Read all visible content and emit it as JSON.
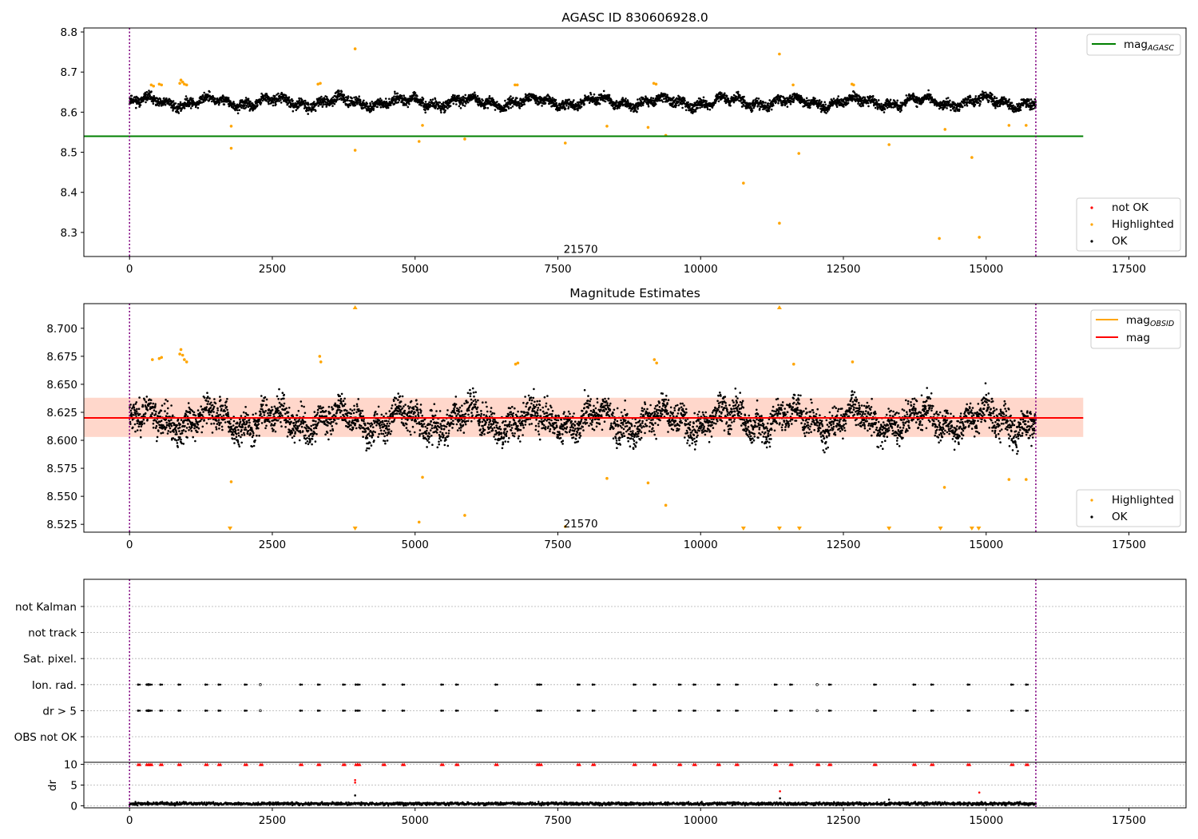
{
  "chart_data": [
    {
      "type": "scatter",
      "title": "AGASC ID 830606928.0",
      "xlim": [
        -800,
        18500
      ],
      "ylim": [
        8.24,
        8.81
      ],
      "xticks": [
        0,
        2500,
        5000,
        7500,
        10000,
        12500,
        15000,
        17500
      ],
      "yticks": [
        8.3,
        8.4,
        8.5,
        8.6,
        8.7,
        8.8
      ],
      "ytick_labels": [
        "8.3",
        "8.4",
        "8.5",
        "8.6",
        "8.7",
        "8.8"
      ],
      "grid": false,
      "vlines": [
        0,
        15870
      ],
      "hline": {
        "name": "mag_AGASC",
        "legend_main": "mag",
        "legend_sub": "AGASC",
        "y": 8.54,
        "x_range": [
          -800,
          16700
        ],
        "color": "#008000"
      },
      "obsid_label": {
        "text": "21570",
        "x": 7900,
        "y": 8.257
      },
      "series_ok": {
        "name": "OK",
        "color": "#000000",
        "x_range": [
          0,
          15870
        ],
        "level": 8.625,
        "amplitude": 0.022,
        "noise": 0.012,
        "seed": 11
      },
      "highlighted": {
        "name": "Highlighted",
        "color": "#ffa500",
        "points": [
          [
            380,
            8.668
          ],
          [
            420,
            8.665
          ],
          [
            520,
            8.67
          ],
          [
            560,
            8.668
          ],
          [
            880,
            8.672
          ],
          [
            900,
            8.68
          ],
          [
            930,
            8.675
          ],
          [
            960,
            8.67
          ],
          [
            1000,
            8.668
          ],
          [
            1780,
            8.565
          ],
          [
            1780,
            8.51
          ],
          [
            3300,
            8.67
          ],
          [
            3340,
            8.672
          ],
          [
            3950,
            8.758
          ],
          [
            3950,
            8.505
          ],
          [
            5070,
            8.527
          ],
          [
            5130,
            8.567
          ],
          [
            5870,
            8.533
          ],
          [
            6750,
            8.668
          ],
          [
            6790,
            8.668
          ],
          [
            7630,
            8.523
          ],
          [
            8360,
            8.565
          ],
          [
            9080,
            8.562
          ],
          [
            9180,
            8.672
          ],
          [
            9220,
            8.67
          ],
          [
            9390,
            8.542
          ],
          [
            10750,
            8.423
          ],
          [
            11380,
            8.745
          ],
          [
            11380,
            8.323
          ],
          [
            11620,
            8.668
          ],
          [
            11720,
            8.497
          ],
          [
            12650,
            8.67
          ],
          [
            12680,
            8.668
          ],
          [
            13300,
            8.519
          ],
          [
            14280,
            8.557
          ],
          [
            14180,
            8.285
          ],
          [
            14750,
            8.487
          ],
          [
            14880,
            8.288
          ],
          [
            15400,
            8.567
          ],
          [
            15700,
            8.567
          ]
        ]
      },
      "legend_lines": [
        {
          "main": "mag",
          "sub": "AGASC",
          "color": "#008000"
        }
      ],
      "legend_points": [
        {
          "label": "not OK",
          "color": "#ff0000"
        },
        {
          "label": "Highlighted",
          "color": "#ffa500"
        },
        {
          "label": "OK",
          "color": "#000000"
        }
      ]
    },
    {
      "type": "scatter",
      "title": "Magnitude Estimates",
      "xlim": [
        -800,
        18500
      ],
      "ylim": [
        8.518,
        8.722
      ],
      "xticks": [
        0,
        2500,
        5000,
        7500,
        10000,
        12500,
        15000,
        17500
      ],
      "yticks": [
        8.525,
        8.55,
        8.575,
        8.6,
        8.625,
        8.65,
        8.675,
        8.7
      ],
      "ytick_labels": [
        "8.525",
        "8.550",
        "8.575",
        "8.600",
        "8.625",
        "8.650",
        "8.675",
        "8.700"
      ],
      "grid": false,
      "vlines": [
        0,
        15870
      ],
      "mean_line": {
        "name": "mag",
        "y": 8.62,
        "x_range": [
          -800,
          16700
        ],
        "color": "#ff0000"
      },
      "band": {
        "y_low": 8.603,
        "y_high": 8.638,
        "x_range": [
          -800,
          16700
        ],
        "color": "#ffb6a0"
      },
      "obsid_label": {
        "text": "21570",
        "x": 7900,
        "y": 8.525
      },
      "series_ok": {
        "name": "OK",
        "color": "#000000",
        "x_range": [
          0,
          15870
        ],
        "level": 8.618,
        "amplitude": 0.02,
        "noise": 0.014,
        "seed": 23
      },
      "highlighted": {
        "name": "Highlighted",
        "color": "#ffa500",
        "points": [
          [
            400,
            8.672
          ],
          [
            520,
            8.673
          ],
          [
            560,
            8.674
          ],
          [
            880,
            8.677
          ],
          [
            900,
            8.681
          ],
          [
            930,
            8.676
          ],
          [
            960,
            8.672
          ],
          [
            1000,
            8.67
          ],
          [
            1780,
            8.563
          ],
          [
            3330,
            8.675
          ],
          [
            3350,
            8.67
          ],
          [
            5130,
            8.567
          ],
          [
            5070,
            8.527
          ],
          [
            5870,
            8.533
          ],
          [
            6760,
            8.668
          ],
          [
            6800,
            8.669
          ],
          [
            7630,
            8.523
          ],
          [
            8360,
            8.566
          ],
          [
            9080,
            8.562
          ],
          [
            9190,
            8.672
          ],
          [
            9230,
            8.669
          ],
          [
            9390,
            8.542
          ],
          [
            11630,
            8.668
          ],
          [
            12660,
            8.67
          ],
          [
            14270,
            8.558
          ],
          [
            15400,
            8.565
          ],
          [
            15700,
            8.565
          ]
        ]
      },
      "up_markers": [
        3950,
        11380
      ],
      "down_markers": [
        1760,
        3950,
        10750,
        11380,
        11730,
        13300,
        14200,
        14750,
        14870
      ],
      "legend_lines": [
        {
          "main": "mag",
          "sub": "OBSID",
          "color": "#ffa500"
        },
        {
          "main": "mag",
          "sub": "",
          "color": "#ff0000"
        }
      ],
      "legend_points": [
        {
          "label": "Highlighted",
          "color": "#ffa500"
        },
        {
          "label": "OK",
          "color": "#000000"
        }
      ]
    },
    {
      "type": "scatter",
      "xlim": [
        -800,
        18500
      ],
      "xticks": [
        0,
        2500,
        5000,
        7500,
        10000,
        12500,
        15000,
        17500
      ],
      "vlines": [
        0,
        15870
      ],
      "flag_rows": [
        "not Kalman",
        "not track",
        "Sat. pixel.",
        "Ion. rad.",
        "dr > 5",
        "OBS not OK"
      ],
      "flag_events": [
        150,
        300,
        330,
        360,
        540,
        860,
        1330,
        1560,
        2020,
        2290,
        2990,
        3300,
        3740,
        3960,
        4000,
        4440,
        4780,
        5460,
        5720,
        6410,
        7140,
        7180,
        7850,
        8110,
        8830,
        9180,
        9620,
        9880,
        10300,
        10620,
        11300,
        11570,
        12040,
        12250,
        13040,
        13730,
        14040,
        14680,
        15440,
        15700
      ],
      "flag_hollow_events": [
        330,
        2290,
        12040
      ],
      "dr": {
        "ylabel": "dr",
        "ylim": [
          -0.5,
          10.5
        ],
        "yticks": [
          0,
          5,
          10
        ],
        "ytick_labels": [
          "0",
          "5",
          "10"
        ],
        "baseline": {
          "x_range": [
            0,
            15870
          ],
          "level": 0.5,
          "noise": 0.35,
          "seed": 37
        },
        "clipped_value": 10,
        "outliers": [
          [
            3950,
            6.2
          ],
          [
            3950,
            5.6
          ],
          [
            3950,
            2.5
          ],
          [
            11390,
            3.5
          ],
          [
            11390,
            1.8
          ],
          [
            14880,
            3.2
          ],
          [
            13300,
            1.5
          ]
        ]
      }
    }
  ]
}
